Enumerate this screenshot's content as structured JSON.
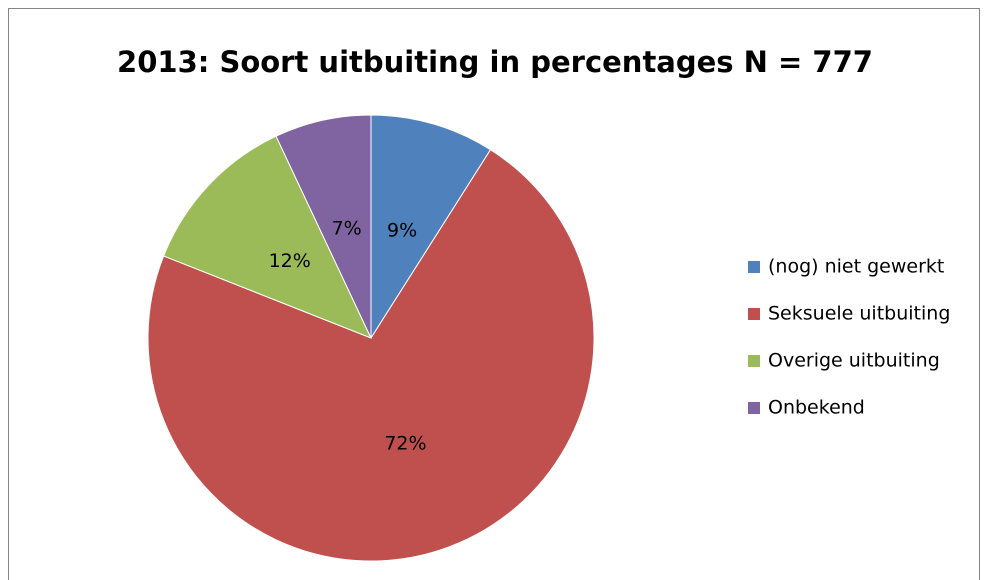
{
  "chart_data": {
    "type": "pie",
    "title": "2013: Soort uitbuiting in percentages N = 777",
    "categories": [
      "(nog) niet gewerkt",
      "Seksuele uitbuiting",
      "Overige uitbuiting",
      "Onbekend"
    ],
    "values": [
      9,
      72,
      12,
      7
    ],
    "value_labels": [
      "9%",
      "72%",
      "12%",
      "7%"
    ],
    "colors": [
      "#4f81bd",
      "#c0504d",
      "#9bbb59",
      "#8064a2"
    ],
    "legend": "right"
  }
}
